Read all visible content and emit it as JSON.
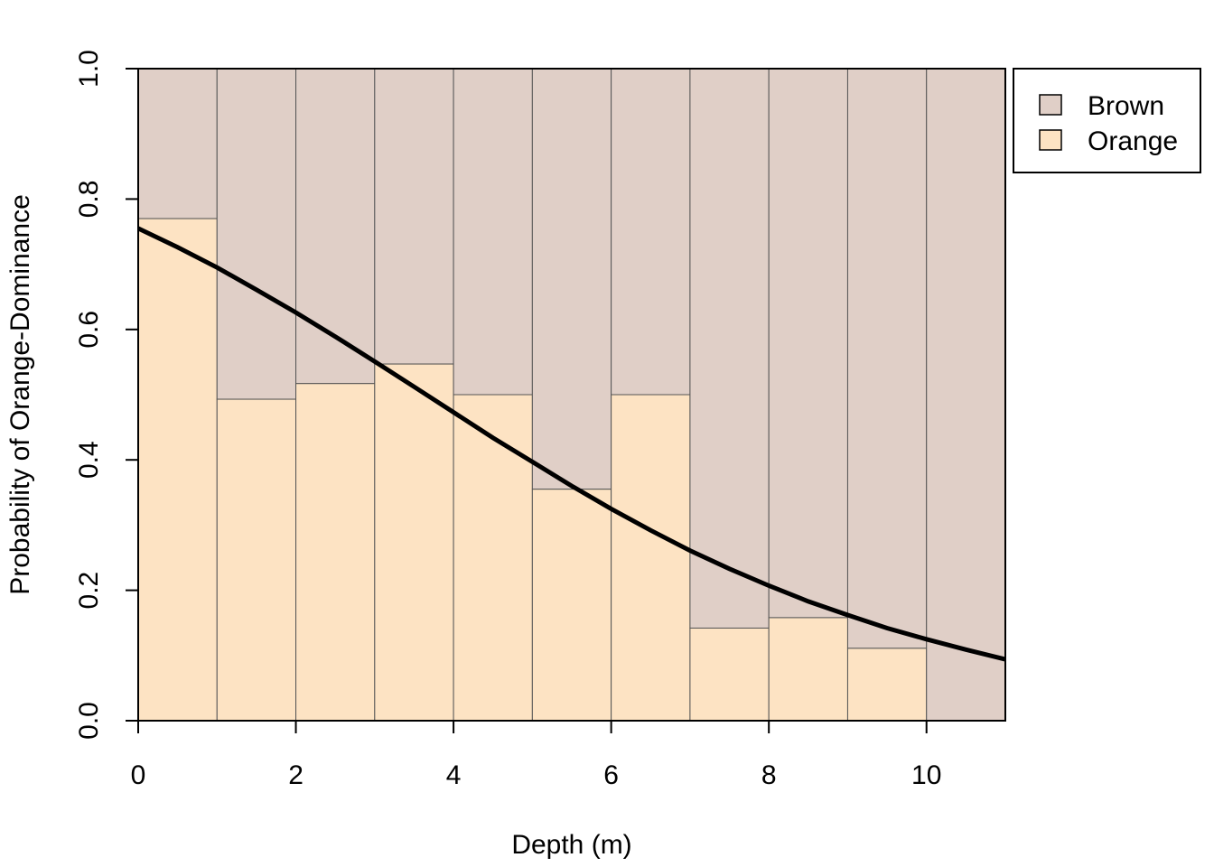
{
  "chart_data": {
    "type": "bar",
    "stacked": true,
    "xlabel": "Depth (m)",
    "ylabel": "Probability of Orange-Dominance",
    "xlim": [
      0,
      11
    ],
    "ylim": [
      0,
      1
    ],
    "x_ticks": [
      "0",
      "2",
      "4",
      "6",
      "8",
      "10"
    ],
    "y_ticks": [
      "0.0",
      "0.2",
      "0.4",
      "0.6",
      "0.8",
      "1.0"
    ],
    "bins": [
      {
        "x_start": 0,
        "x_end": 1,
        "orange": 0.77
      },
      {
        "x_start": 1,
        "x_end": 2,
        "orange": 0.493
      },
      {
        "x_start": 2,
        "x_end": 3,
        "orange": 0.517
      },
      {
        "x_start": 3,
        "x_end": 4,
        "orange": 0.547
      },
      {
        "x_start": 4,
        "x_end": 5,
        "orange": 0.5
      },
      {
        "x_start": 5,
        "x_end": 6,
        "orange": 0.355
      },
      {
        "x_start": 6,
        "x_end": 7,
        "orange": 0.5
      },
      {
        "x_start": 7,
        "x_end": 8,
        "orange": 0.142
      },
      {
        "x_start": 8,
        "x_end": 9,
        "orange": 0.158
      },
      {
        "x_start": 9,
        "x_end": 10,
        "orange": 0.111
      },
      {
        "x_start": 10,
        "x_end": 11,
        "orange": 0.0
      }
    ],
    "series": [
      {
        "name": "Brown",
        "color": "#e0cfc7"
      },
      {
        "name": "Orange",
        "color": "#fde3c3"
      }
    ],
    "fitted_curve": {
      "color": "#000000",
      "x": [
        0,
        0.5,
        1,
        1.5,
        2,
        2.5,
        3,
        3.5,
        4,
        4.5,
        5,
        5.5,
        6,
        6.5,
        7,
        7.5,
        8,
        8.5,
        9,
        9.5,
        10,
        10.5,
        11
      ],
      "y": [
        0.755,
        0.726,
        0.695,
        0.661,
        0.626,
        0.589,
        0.551,
        0.512,
        0.473,
        0.434,
        0.397,
        0.36,
        0.325,
        0.292,
        0.261,
        0.233,
        0.207,
        0.183,
        0.162,
        0.142,
        0.125,
        0.109,
        0.094
      ]
    },
    "legend": {
      "position": "top-right-outside",
      "entries": [
        "Brown",
        "Orange"
      ]
    }
  }
}
